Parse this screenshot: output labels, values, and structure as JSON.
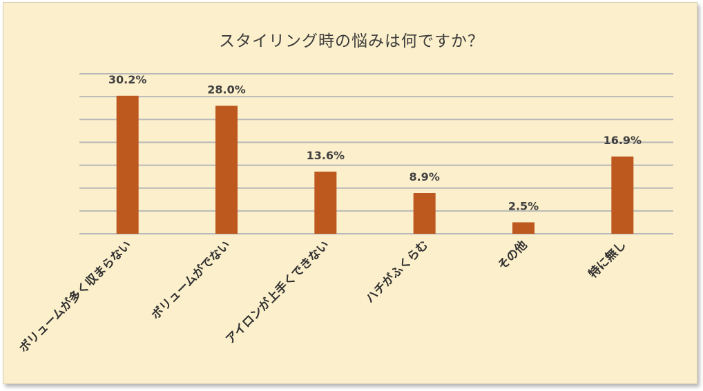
{
  "chart_data": {
    "type": "bar",
    "title": "スタイリング時の悩みは何ですか？",
    "categories": [
      "ボリュームが多く収まらない",
      "ボリュームがでない",
      "アイロンが上手くできない",
      "ハチがふくらむ",
      "その他",
      "特に無し"
    ],
    "values": [
      30.2,
      28.0,
      13.6,
      8.9,
      2.5,
      16.9
    ],
    "value_labels": [
      "30.2%",
      "28.0%",
      "13.6%",
      "8.9%",
      "2.5%",
      "16.9%"
    ],
    "xlabel": "",
    "ylabel": "",
    "ylim": [
      0,
      35
    ],
    "grid": true,
    "legend": "none",
    "colors": {
      "bar": "#bd581f",
      "background": "#fcefcb",
      "grid": "#b8b8b8"
    }
  }
}
